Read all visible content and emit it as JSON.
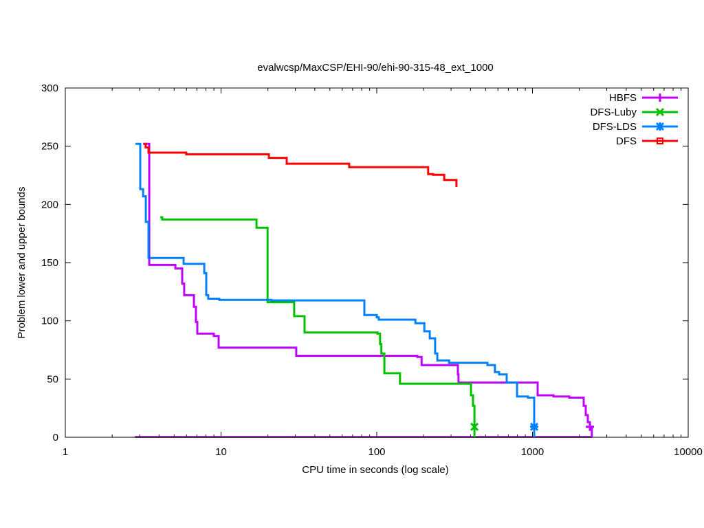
{
  "chart_data": {
    "type": "line",
    "title": "evalwcsp/MaxCSP/EHI-90/ehi-90-315-48_ext_1000",
    "xlabel": "CPU time in seconds (log scale)",
    "ylabel": "Problem lower and upper bounds",
    "xscale": "log",
    "xlim": [
      1,
      10000
    ],
    "ylim": [
      0,
      300
    ],
    "xticks": [
      1,
      10,
      100,
      1000,
      10000
    ],
    "xtick_labels": [
      "1",
      "10",
      "100",
      "1000",
      "10000"
    ],
    "yticks": [
      0,
      50,
      100,
      150,
      200,
      250,
      300
    ],
    "ytick_labels": [
      "0",
      "50",
      "100",
      "150",
      "200",
      "250",
      "300"
    ],
    "legend_position": "top-right",
    "series": [
      {
        "name": "HBFS",
        "color": "#c000ff",
        "marker": "plus",
        "marker_point": [
          2337,
          9
        ],
        "points": [
          [
            3.16,
            252
          ],
          [
            3.46,
            148
          ],
          [
            5.09,
            145
          ],
          [
            5.63,
            132
          ],
          [
            5.8,
            122
          ],
          [
            6.7,
            112
          ],
          [
            6.9,
            99
          ],
          [
            7.04,
            89
          ],
          [
            8.99,
            87
          ],
          [
            9.65,
            77
          ],
          [
            12.7,
            77
          ],
          [
            30.4,
            70
          ],
          [
            182,
            69
          ],
          [
            194,
            62
          ],
          [
            332,
            54
          ],
          [
            335,
            47
          ],
          [
            1079,
            36
          ],
          [
            1364,
            35
          ],
          [
            1722,
            34
          ],
          [
            2133,
            27
          ],
          [
            2199,
            19
          ],
          [
            2266,
            13
          ],
          [
            2337,
            9
          ],
          [
            2408,
            0
          ]
        ]
      },
      {
        "name": "DFS-Luby",
        "color": "#00c000",
        "marker": "cross",
        "marker_point": [
          424,
          9
        ],
        "points": [
          [
            4.07,
            189
          ],
          [
            4.19,
            187
          ],
          [
            16.9,
            180
          ],
          [
            19.9,
            116
          ],
          [
            29.5,
            104
          ],
          [
            34.4,
            90
          ],
          [
            101,
            89
          ],
          [
            105,
            80
          ],
          [
            107,
            72
          ],
          [
            112,
            55
          ],
          [
            141,
            46
          ],
          [
            403,
            36
          ],
          [
            415,
            27
          ],
          [
            424,
            0
          ]
        ]
      },
      {
        "name": "DFS-LDS",
        "color": "#0080ff",
        "marker": "star",
        "marker_point": [
          1026,
          9
        ],
        "points": [
          [
            2.82,
            252
          ],
          [
            3.03,
            213
          ],
          [
            3.16,
            207
          ],
          [
            3.29,
            185
          ],
          [
            3.42,
            154
          ],
          [
            5.75,
            149
          ],
          [
            7.8,
            141
          ],
          [
            8.04,
            122
          ],
          [
            8.28,
            119
          ],
          [
            9.75,
            118
          ],
          [
            21.1,
            117.5
          ],
          [
            83.3,
            105
          ],
          [
            100,
            103
          ],
          [
            103,
            101
          ],
          [
            177,
            98
          ],
          [
            202,
            91
          ],
          [
            219,
            85
          ],
          [
            237,
            72
          ],
          [
            245,
            66
          ],
          [
            291,
            64
          ],
          [
            514,
            62
          ],
          [
            574,
            56
          ],
          [
            611,
            54
          ],
          [
            683,
            47
          ],
          [
            796,
            35
          ],
          [
            936,
            34
          ],
          [
            1026,
            0
          ]
        ]
      },
      {
        "name": "DFS",
        "color": "#ff0000",
        "marker": "box",
        "marker_point": null,
        "points": [
          [
            3.19,
            252
          ],
          [
            3.28,
            249
          ],
          [
            3.42,
            244.5
          ],
          [
            5.98,
            243
          ],
          [
            20.3,
            240
          ],
          [
            26.4,
            235
          ],
          [
            66.5,
            232
          ],
          [
            214,
            226
          ],
          [
            230,
            225.5
          ],
          [
            271,
            221
          ],
          [
            325,
            215
          ]
        ]
      }
    ],
    "lower_bound": {
      "color": "#000000",
      "from": 2.8,
      "to": 2408,
      "value": 0
    }
  }
}
